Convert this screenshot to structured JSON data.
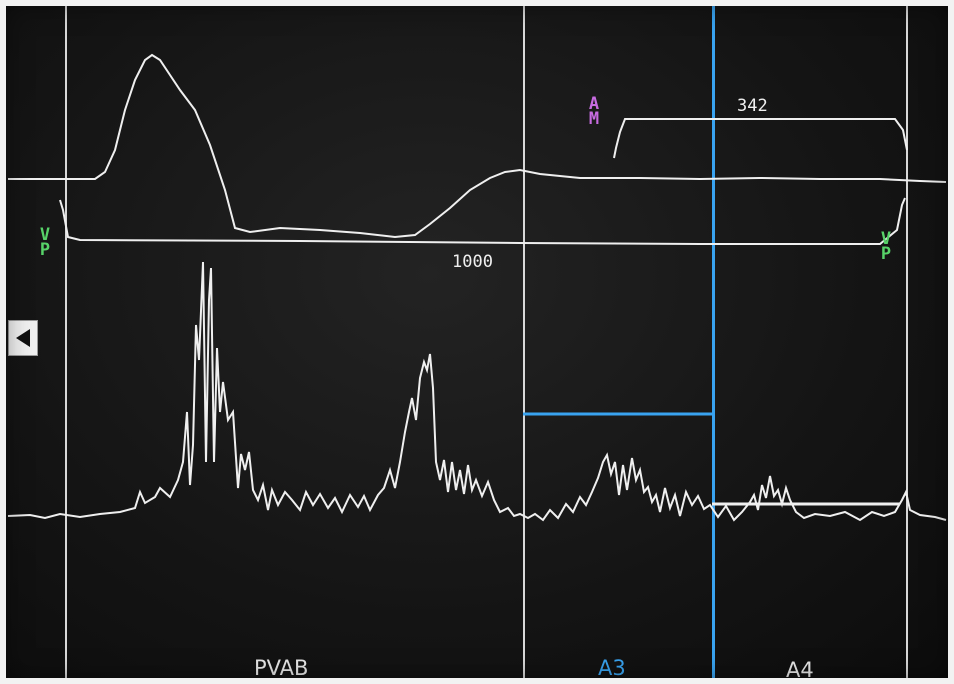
{
  "interval": {
    "main_value": "1000",
    "atrial_value": "342"
  },
  "markers": {
    "left_vp": [
      "V",
      "P"
    ],
    "right_vp": [
      "V",
      "P"
    ],
    "am": [
      "A",
      "M"
    ]
  },
  "channels": {
    "pvab_label": "PVAB",
    "a3_label": "A3",
    "a4_label": "A4"
  },
  "colors": {
    "trace": "#efefef",
    "grid": "#d8d8d8",
    "window_blue": "#39a3f0",
    "vp_green": "#57d268",
    "am_purple": "#c76be0"
  },
  "icons": {
    "back": "left-triangle"
  }
}
